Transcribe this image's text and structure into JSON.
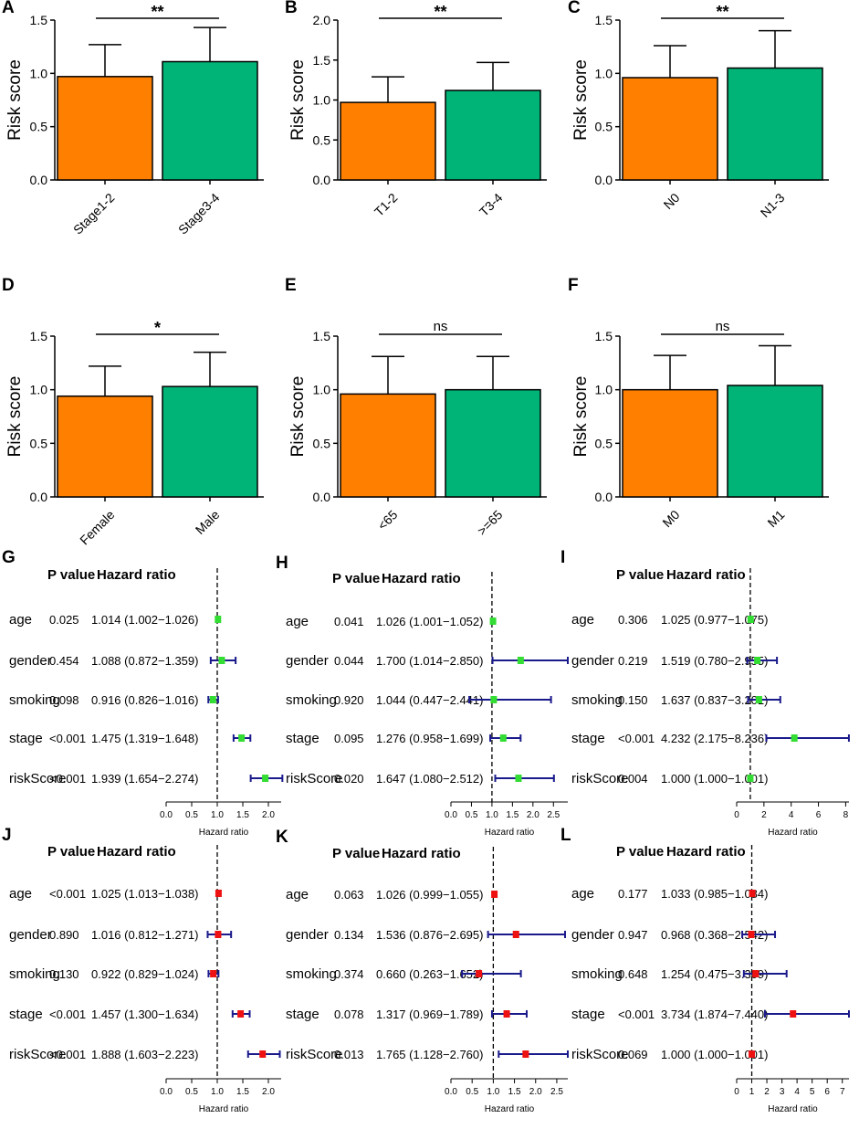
{
  "colors": {
    "orange": "#ff7f00",
    "green": "#00b377",
    "forest_green_marker": "#33dd33",
    "forest_red_marker": "#ee1111",
    "forest_ci": "#1a1a8c",
    "axis": "#000000"
  },
  "chart_data": [
    {
      "panel": "A",
      "type": "bar",
      "ylabel": "Risk score",
      "categories": [
        "Stage1-2",
        "Stage3-4"
      ],
      "values": [
        0.97,
        1.11
      ],
      "errors": [
        0.3,
        0.32
      ],
      "ylim": [
        0,
        1.5
      ],
      "yticks": [
        "0.0",
        "0.5",
        "1.0",
        "1.5"
      ],
      "significance": "**"
    },
    {
      "panel": "B",
      "type": "bar",
      "ylabel": "Risk score",
      "categories": [
        "T1-2",
        "T3-4"
      ],
      "values": [
        0.97,
        1.12
      ],
      "errors": [
        0.32,
        0.35
      ],
      "ylim": [
        0,
        2.0
      ],
      "yticks": [
        "0.0",
        "0.5",
        "1.0",
        "1.5",
        "2.0"
      ],
      "significance": "**"
    },
    {
      "panel": "C",
      "type": "bar",
      "ylabel": "Risk score",
      "categories": [
        "N0",
        "N1-3"
      ],
      "values": [
        0.96,
        1.05
      ],
      "errors": [
        0.3,
        0.35
      ],
      "ylim": [
        0,
        1.5
      ],
      "yticks": [
        "0.0",
        "0.5",
        "1.0",
        "1.5"
      ],
      "significance": "**"
    },
    {
      "panel": "D",
      "type": "bar",
      "ylabel": "Risk score",
      "categories": [
        "Female",
        "Male"
      ],
      "values": [
        0.94,
        1.03
      ],
      "errors": [
        0.28,
        0.32
      ],
      "ylim": [
        0,
        1.5
      ],
      "yticks": [
        "0.0",
        "0.5",
        "1.0",
        "1.5"
      ],
      "significance": "*"
    },
    {
      "panel": "E",
      "type": "bar",
      "ylabel": "Risk score",
      "categories": [
        "<65",
        ">=65"
      ],
      "values": [
        0.96,
        1.0
      ],
      "errors": [
        0.35,
        0.31
      ],
      "ylim": [
        0,
        1.5
      ],
      "yticks": [
        "0.0",
        "0.5",
        "1.0",
        "1.5"
      ],
      "significance": "ns"
    },
    {
      "panel": "F",
      "type": "bar",
      "ylabel": "Risk score",
      "categories": [
        "M0",
        "M1"
      ],
      "values": [
        1.0,
        1.04
      ],
      "errors": [
        0.32,
        0.37
      ],
      "ylim": [
        0,
        1.5
      ],
      "yticks": [
        "0.0",
        "0.5",
        "1.0",
        "1.5"
      ],
      "significance": "ns"
    },
    {
      "panel": "G",
      "type": "forest",
      "marker": "green",
      "col_p": "P value",
      "col_hr": "Hazard ratio",
      "xlabel": "Hazard ratio",
      "xlim": [
        0,
        2.25
      ],
      "xticks": [
        0,
        0.5,
        1.0,
        1.5,
        2.0
      ],
      "xtick_labels": [
        "0.0",
        "0.5",
        "1.0",
        "1.5",
        "2.0"
      ],
      "rows": [
        {
          "label": "age",
          "p": "0.025",
          "hr_text": "1.014 (1.002−1.026)",
          "hr": 1.014,
          "lo": 1.002,
          "hi": 1.026
        },
        {
          "label": "gender",
          "p": "0.454",
          "hr_text": "1.088 (0.872−1.359)",
          "hr": 1.088,
          "lo": 0.872,
          "hi": 1.359
        },
        {
          "label": "smoking",
          "p": "0.098",
          "hr_text": "0.916 (0.826−1.016)",
          "hr": 0.916,
          "lo": 0.826,
          "hi": 1.016
        },
        {
          "label": "stage",
          "p": "<0.001",
          "hr_text": "1.475 (1.319−1.648)",
          "hr": 1.475,
          "lo": 1.319,
          "hi": 1.648
        },
        {
          "label": "riskScore",
          "p": "<0.001",
          "hr_text": "1.939 (1.654−2.274)",
          "hr": 1.939,
          "lo": 1.654,
          "hi": 2.274
        }
      ]
    },
    {
      "panel": "H",
      "type": "forest",
      "marker": "green",
      "col_p": "P value",
      "col_hr": "Hazard ratio",
      "xlabel": "Hazard ratio",
      "xlim": [
        0,
        2.85
      ],
      "xticks": [
        0,
        0.5,
        1.0,
        1.5,
        2.0,
        2.5
      ],
      "xtick_labels": [
        "0.0",
        "0.5",
        "1.0",
        "1.5",
        "2.0",
        "2.5"
      ],
      "rows": [
        {
          "label": "age",
          "p": "0.041",
          "hr_text": "1.026 (1.001−1.052)",
          "hr": 1.026,
          "lo": 1.001,
          "hi": 1.052
        },
        {
          "label": "gender",
          "p": "0.044",
          "hr_text": "1.700 (1.014−2.850)",
          "hr": 1.7,
          "lo": 1.014,
          "hi": 2.85
        },
        {
          "label": "smoking",
          "p": "0.920",
          "hr_text": "1.044 (0.447−2.441)",
          "hr": 1.044,
          "lo": 0.447,
          "hi": 2.441
        },
        {
          "label": "stage",
          "p": "0.095",
          "hr_text": "1.276 (0.958−1.699)",
          "hr": 1.276,
          "lo": 0.958,
          "hi": 1.699
        },
        {
          "label": "riskScore",
          "p": "0.020",
          "hr_text": "1.647 (1.080−2.512)",
          "hr": 1.647,
          "lo": 1.08,
          "hi": 2.512
        }
      ]
    },
    {
      "panel": "I",
      "type": "forest",
      "marker": "green",
      "col_p": "P value",
      "col_hr": "Hazard ratio",
      "xlabel": "Hazard ratio",
      "xlim": [
        0,
        8.24
      ],
      "xticks": [
        0,
        2,
        4,
        6,
        8
      ],
      "xtick_labels": [
        "0",
        "2",
        "4",
        "6",
        "8"
      ],
      "rows": [
        {
          "label": "age",
          "p": "0.306",
          "hr_text": "1.025 (0.977−1.075)",
          "hr": 1.025,
          "lo": 0.977,
          "hi": 1.075
        },
        {
          "label": "gender",
          "p": "0.219",
          "hr_text": "1.519 (0.780−2.955)",
          "hr": 1.519,
          "lo": 0.78,
          "hi": 2.955
        },
        {
          "label": "smoking",
          "p": "0.150",
          "hr_text": "1.637 (0.837−3.201)",
          "hr": 1.637,
          "lo": 0.837,
          "hi": 3.201
        },
        {
          "label": "stage",
          "p": "<0.001",
          "hr_text": "4.232 (2.175−8.236)",
          "hr": 4.232,
          "lo": 2.175,
          "hi": 8.236
        },
        {
          "label": "riskScore",
          "p": "0.004",
          "hr_text": "1.000 (1.000−1.001)",
          "hr": 1.0,
          "lo": 1.0,
          "hi": 1.001
        }
      ]
    },
    {
      "panel": "J",
      "type": "forest",
      "marker": "red",
      "col_p": "P value",
      "col_hr": "Hazard ratio",
      "xlabel": "Hazard ratio",
      "xlim": [
        0,
        2.25
      ],
      "xticks": [
        0,
        0.5,
        1.0,
        1.5,
        2.0
      ],
      "xtick_labels": [
        "0.0",
        "0.5",
        "1.0",
        "1.5",
        "2.0"
      ],
      "rows": [
        {
          "label": "age",
          "p": "<0.001",
          "hr_text": "1.025 (1.013−1.038)",
          "hr": 1.025,
          "lo": 1.013,
          "hi": 1.038
        },
        {
          "label": "gender",
          "p": "0.890",
          "hr_text": "1.016 (0.812−1.271)",
          "hr": 1.016,
          "lo": 0.812,
          "hi": 1.271
        },
        {
          "label": "smoking",
          "p": "0.130",
          "hr_text": "0.922 (0.829−1.024)",
          "hr": 0.922,
          "lo": 0.829,
          "hi": 1.024
        },
        {
          "label": "stage",
          "p": "<0.001",
          "hr_text": "1.457 (1.300−1.634)",
          "hr": 1.457,
          "lo": 1.3,
          "hi": 1.634
        },
        {
          "label": "riskScore",
          "p": "<0.001",
          "hr_text": "1.888 (1.603−2.223)",
          "hr": 1.888,
          "lo": 1.603,
          "hi": 2.223
        }
      ]
    },
    {
      "panel": "K",
      "type": "forest",
      "marker": "red",
      "col_p": "P value",
      "col_hr": "Hazard ratio",
      "xlabel": "Hazard ratio",
      "xlim": [
        0,
        2.76
      ],
      "xticks": [
        0,
        0.5,
        1.0,
        1.5,
        2.0,
        2.5
      ],
      "xtick_labels": [
        "0.0",
        "0.5",
        "1.0",
        "1.5",
        "2.0",
        "2.5"
      ],
      "rows": [
        {
          "label": "age",
          "p": "0.063",
          "hr_text": "1.026 (0.999−1.055)",
          "hr": 1.026,
          "lo": 0.999,
          "hi": 1.055
        },
        {
          "label": "gender",
          "p": "0.134",
          "hr_text": "1.536 (0.876−2.695)",
          "hr": 1.536,
          "lo": 0.876,
          "hi": 2.695
        },
        {
          "label": "smoking",
          "p": "0.374",
          "hr_text": "0.660 (0.263−1.652)",
          "hr": 0.66,
          "lo": 0.263,
          "hi": 1.652
        },
        {
          "label": "stage",
          "p": "0.078",
          "hr_text": "1.317 (0.969−1.789)",
          "hr": 1.317,
          "lo": 0.969,
          "hi": 1.789
        },
        {
          "label": "riskScore",
          "p": "0.013",
          "hr_text": "1.765 (1.128−2.760)",
          "hr": 1.765,
          "lo": 1.128,
          "hi": 2.76
        }
      ]
    },
    {
      "panel": "L",
      "type": "forest",
      "marker": "red",
      "col_p": "P value",
      "col_hr": "Hazard ratio",
      "xlabel": "Hazard ratio",
      "xlim": [
        0,
        7.44
      ],
      "xticks": [
        0,
        1,
        2,
        3,
        4,
        5,
        6,
        7
      ],
      "xtick_labels": [
        "0",
        "1",
        "2",
        "3",
        "4",
        "5",
        "6",
        "7"
      ],
      "rows": [
        {
          "label": "age",
          "p": "0.177",
          "hr_text": "1.033 (0.985−1.084)",
          "hr": 1.033,
          "lo": 0.985,
          "hi": 1.084
        },
        {
          "label": "gender",
          "p": "0.947",
          "hr_text": "0.968 (0.368−2.542)",
          "hr": 0.968,
          "lo": 0.368,
          "hi": 2.542
        },
        {
          "label": "smoking",
          "p": "0.648",
          "hr_text": "1.254 (0.475−3.309)",
          "hr": 1.254,
          "lo": 0.475,
          "hi": 3.309
        },
        {
          "label": "stage",
          "p": "<0.001",
          "hr_text": "3.734 (1.874−7.440)",
          "hr": 3.734,
          "lo": 1.874,
          "hi": 7.44
        },
        {
          "label": "riskScore",
          "p": "0.069",
          "hr_text": "1.000 (1.000−1.001)",
          "hr": 1.0,
          "lo": 1.0,
          "hi": 1.001
        }
      ]
    }
  ]
}
